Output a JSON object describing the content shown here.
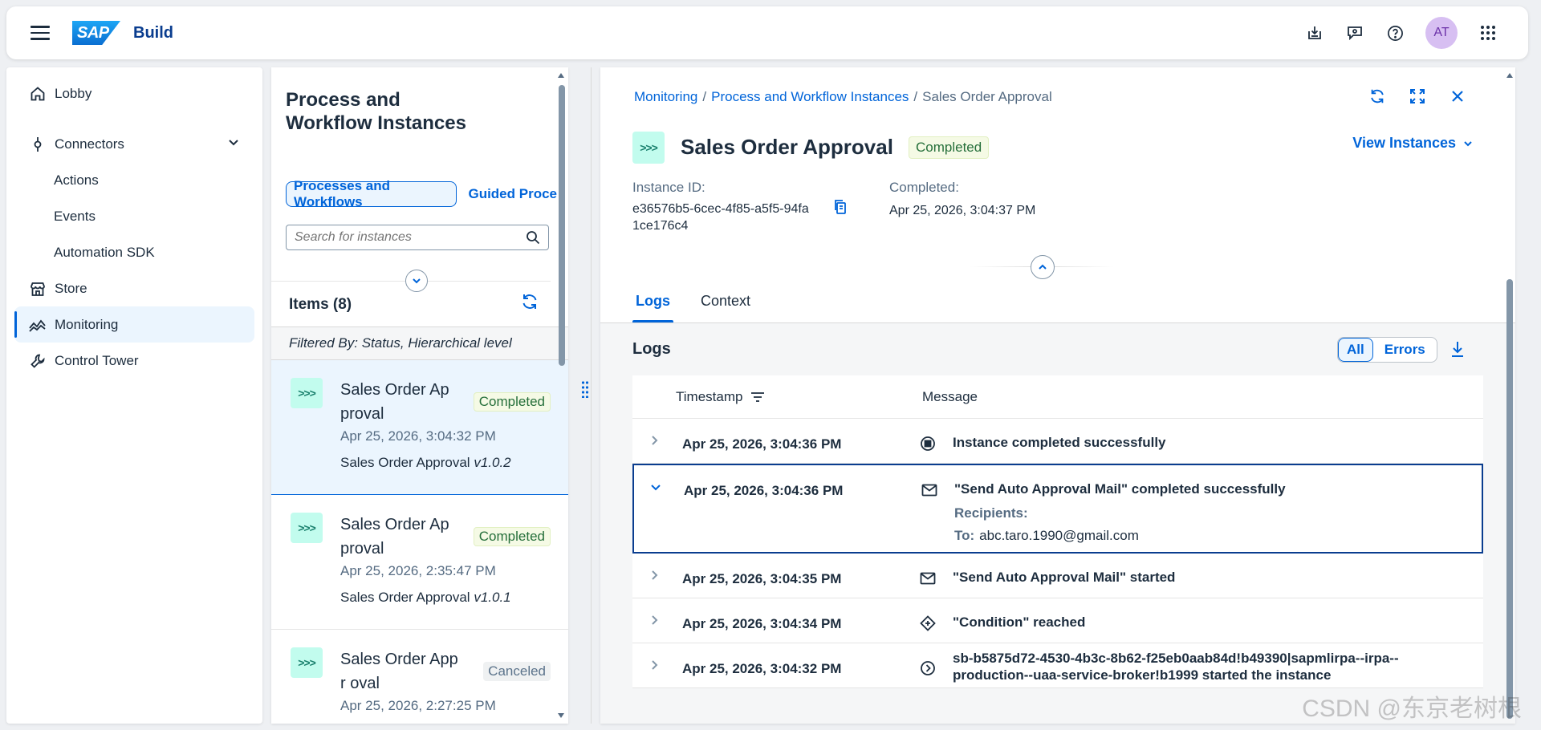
{
  "shell": {
    "logo_text": "SAP",
    "product": "Build",
    "avatar_initials": "AT",
    "icons": [
      "hamburger-icon",
      "downloads-icon",
      "feedback-icon",
      "help-icon",
      "app-grid-icon"
    ]
  },
  "sidenav": {
    "items": [
      {
        "label": "Lobby",
        "icon": "home-icon"
      },
      {
        "label": "Connectors",
        "icon": "connector-icon",
        "expanded": true
      },
      {
        "label": "Actions"
      },
      {
        "label": "Events"
      },
      {
        "label": "Automation SDK"
      },
      {
        "label": "Store",
        "icon": "store-icon"
      },
      {
        "label": "Monitoring",
        "icon": "monitoring-icon",
        "active": true
      },
      {
        "label": "Control Tower",
        "icon": "wrench-icon"
      }
    ]
  },
  "list": {
    "title": "Process and Workflow Instances",
    "segments": [
      "Processes and Workflows",
      "Guided Proce"
    ],
    "search_placeholder": "Search for instances",
    "items_label": "Items (8)",
    "filter_text": "Filtered By: Status, Hierarchical level",
    "items": [
      {
        "name": "Sales Order Ap proval",
        "status": "Completed",
        "date": "Apr 25, 2026, 3:04:32 PM",
        "process": "Sales Order Approval",
        "version": "v1.0.2"
      },
      {
        "name": "Sales Order Ap proval",
        "status": "Completed",
        "date": "Apr 25, 2026, 2:35:47 PM",
        "process": "Sales Order Approval",
        "version": "v1.0.1"
      },
      {
        "name": "Sales Order Appr oval",
        "status": "Canceled",
        "date": "Apr 25, 2026, 2:27:25 PM",
        "process": "",
        "version": ""
      }
    ]
  },
  "detail": {
    "breadcrumbs": [
      "Monitoring",
      "Process and Workflow Instances",
      "Sales Order Approval"
    ],
    "title": "Sales Order Approval",
    "status": "Completed",
    "view_instances": "View Instances",
    "instance_id_label": "Instance ID:",
    "instance_id_line1": "e36576b5-6cec-4f85-a5f5-94fa",
    "instance_id_line2": "1ce176c4",
    "completed_label": "Completed:",
    "completed_value": "Apr 25, 2026, 3:04:37 PM",
    "tabs": [
      "Logs",
      "Context"
    ],
    "logs_title": "Logs",
    "filter_all": "All",
    "filter_errors": "Errors",
    "columns": {
      "timestamp": "Timestamp",
      "message": "Message"
    },
    "logs": [
      {
        "timestamp": "Apr 25, 2026, 3:04:36 PM",
        "icon": "stop-icon",
        "message": "Instance completed successfully"
      },
      {
        "timestamp": "Apr 25, 2026, 3:04:36 PM",
        "icon": "mail-icon",
        "message": "\"Send Auto Approval Mail\" completed successfully",
        "expanded": true,
        "recipients_label": "Recipients:",
        "to_label": "To:",
        "to_value": "abc.taro.1990@gmail.com"
      },
      {
        "timestamp": "Apr 25, 2026, 3:04:35 PM",
        "icon": "mail-icon",
        "message": "\"Send Auto Approval Mail\" started"
      },
      {
        "timestamp": "Apr 25, 2026, 3:04:34 PM",
        "icon": "condition-icon",
        "message": "\"Condition\" reached"
      },
      {
        "timestamp": "Apr 25, 2026, 3:04:32 PM",
        "icon": "start-icon",
        "message": "sb-b5875d72-4530-4b3c-8b62-f25eb0aab84d!b49390|sapmlirpa--irpa--production--uaa-service-broker!b1999 started the instance"
      }
    ]
  },
  "watermark": "CSDN @东京老树根",
  "colors": {
    "accent": "#0064d9",
    "success_bg": "#f5fae5",
    "success_text": "#256f3a",
    "process_icon_bg": "#c2fcee"
  }
}
